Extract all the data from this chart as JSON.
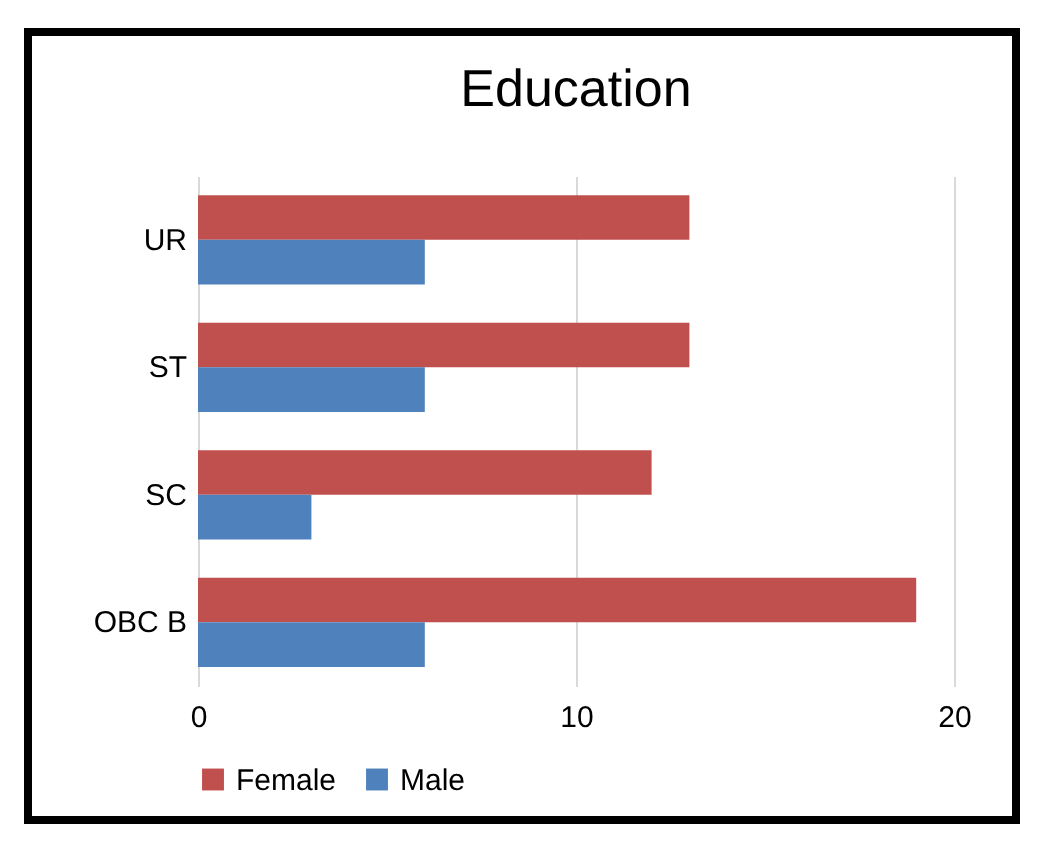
{
  "chart_data": {
    "type": "bar",
    "orientation": "horizontal",
    "title": "Education",
    "categories": [
      "UR",
      "ST",
      "SC",
      "OBC B"
    ],
    "series": [
      {
        "name": "Female",
        "color": "#c0504d",
        "values": [
          13,
          13,
          12,
          19
        ]
      },
      {
        "name": "Male",
        "color": "#4f81bd",
        "values": [
          6,
          6,
          3,
          6
        ]
      }
    ],
    "xlim": [
      0,
      20
    ],
    "xticks": [
      0,
      10,
      20
    ],
    "grid": "x",
    "legend": "bottom"
  }
}
